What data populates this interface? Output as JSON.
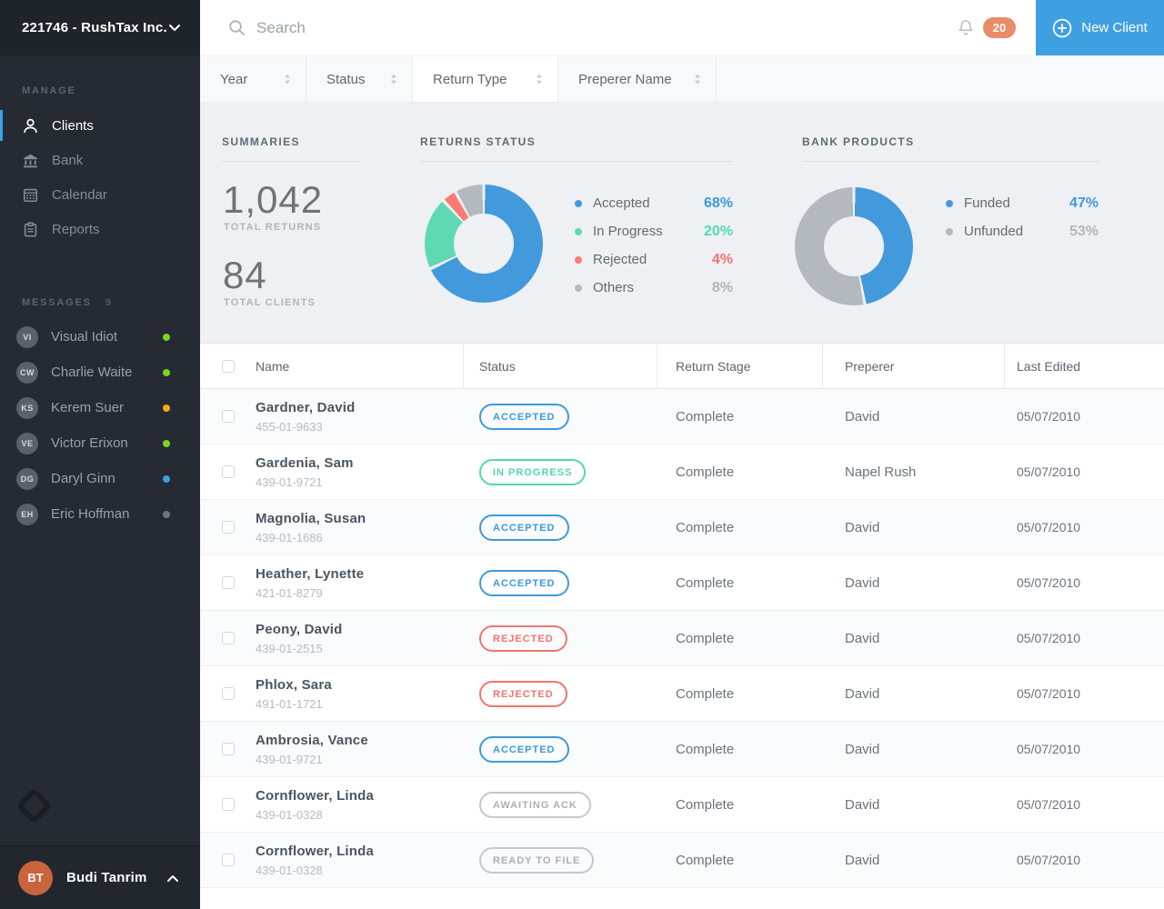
{
  "colors": {
    "accent_blue": "#3fa0e1",
    "notification_badge": "#e98a68",
    "active_nav_indicator": "#3ba1e2",
    "status_accepted": "#3e99dd",
    "status_in_progress": "#55d6b2",
    "status_rejected": "#f4736e",
    "status_neutral_border": "#c3c8ce",
    "status_neutral_text": "#a9b0b8"
  },
  "sidebar": {
    "company_name": "221746 - RushTax Inc.",
    "manage_label": "MANAGE",
    "nav_items": [
      {
        "label": "Clients",
        "icon": "person-icon",
        "active": true
      },
      {
        "label": "Bank",
        "icon": "bank-icon",
        "active": false
      },
      {
        "label": "Calendar",
        "icon": "calendar-icon",
        "active": false
      },
      {
        "label": "Reports",
        "icon": "clipboard-icon",
        "active": false
      }
    ],
    "messages_label": "MESSAGES",
    "messages_count": "9",
    "contacts": [
      {
        "name": "Visual Idiot",
        "status_color": "#7ed321"
      },
      {
        "name": "Charlie Waite",
        "status_color": "#7ed321"
      },
      {
        "name": "Kerem Suer",
        "status_color": "#f5a623"
      },
      {
        "name": "Victor Erixon",
        "status_color": "#7ed321"
      },
      {
        "name": "Daryl Ginn",
        "status_color": "#3f9fe0"
      },
      {
        "name": "Eric Hoffman",
        "status_color": "#6e757d"
      }
    ],
    "user": {
      "name": "Budi Tanrim"
    }
  },
  "topbar": {
    "search_placeholder": "Search",
    "notifications_count": "20",
    "new_client_label": "New Client"
  },
  "filters": {
    "items": [
      {
        "label": "Year",
        "active": false
      },
      {
        "label": "Status",
        "active": false
      },
      {
        "label": "Return Type",
        "active": true
      },
      {
        "label": "Preperer Name",
        "active": false
      }
    ]
  },
  "summaries": {
    "title": "SUMMARIES",
    "total_returns_value": "1,042",
    "total_returns_label": "TOTAL RETURNS",
    "total_clients_value": "84",
    "total_clients_label": "TOTAL CLIENTS"
  },
  "chart_data": [
    {
      "type": "pie",
      "title": "RETURNS STATUS",
      "categories": [
        "Accepted",
        "In Progress",
        "Rejected",
        "Others"
      ],
      "values": [
        68,
        20,
        4,
        8
      ],
      "display_values": [
        "68%",
        "20%",
        "4%",
        "8%"
      ],
      "colors": [
        "#429add",
        "#5fd9b4",
        "#f97b74",
        "#b3b9be"
      ],
      "value_text_colors": [
        "#3e99dd",
        "#55d6b2",
        "#f4736e",
        "#b0b6bc"
      ],
      "legend_position": "right",
      "donut": true
    },
    {
      "type": "pie",
      "title": "BANK PRODUCTS",
      "categories": [
        "Funded",
        "Unfunded"
      ],
      "values": [
        47,
        53
      ],
      "display_values": [
        "47%",
        "53%"
      ],
      "colors": [
        "#429add",
        "#b3b9be"
      ],
      "value_text_colors": [
        "#3e99dd",
        "#b0b6bc"
      ],
      "legend_position": "right",
      "donut": true
    }
  ],
  "table": {
    "columns": [
      "Name",
      "Status",
      "Return Stage",
      "Preperer",
      "Last Edited"
    ],
    "rows": [
      {
        "name": "Gardner, David",
        "ssn": "455-01-9633",
        "status": "ACCEPTED",
        "status_type": "accepted",
        "stage": "Complete",
        "preparer": "David",
        "last_edited": "05/07/2010"
      },
      {
        "name": "Gardenia, Sam",
        "ssn": "439-01-9721",
        "status": "IN PROGRESS",
        "status_type": "in_progress",
        "stage": "Complete",
        "preparer": "Napel Rush",
        "last_edited": "05/07/2010"
      },
      {
        "name": "Magnolia, Susan",
        "ssn": "439-01-1686",
        "status": "ACCEPTED",
        "status_type": "accepted",
        "stage": "Complete",
        "preparer": "David",
        "last_edited": "05/07/2010"
      },
      {
        "name": "Heather, Lynette",
        "ssn": "421-01-8279",
        "status": "ACCEPTED",
        "status_type": "accepted",
        "stage": "Complete",
        "preparer": "David",
        "last_edited": "05/07/2010"
      },
      {
        "name": "Peony, David",
        "ssn": "439-01-2515",
        "status": "REJECTED",
        "status_type": "rejected",
        "stage": "Complete",
        "preparer": "David",
        "last_edited": "05/07/2010"
      },
      {
        "name": "Phlox, Sara",
        "ssn": "491-01-1721",
        "status": "REJECTED",
        "status_type": "rejected",
        "stage": "Complete",
        "preparer": "David",
        "last_edited": "05/07/2010"
      },
      {
        "name": "Ambrosia, Vance",
        "ssn": "439-01-9721",
        "status": "ACCEPTED",
        "status_type": "accepted",
        "stage": "Complete",
        "preparer": "David",
        "last_edited": "05/07/2010"
      },
      {
        "name": "Cornflower, Linda",
        "ssn": "439-01-0328",
        "status": "AWAITING ACK",
        "status_type": "neutral",
        "stage": "Complete",
        "preparer": "David",
        "last_edited": "05/07/2010"
      },
      {
        "name": "Cornflower, Linda",
        "ssn": "439-01-0328",
        "status": "READY TO FILE",
        "status_type": "neutral",
        "stage": "Complete",
        "preparer": "David",
        "last_edited": "05/07/2010"
      }
    ]
  }
}
